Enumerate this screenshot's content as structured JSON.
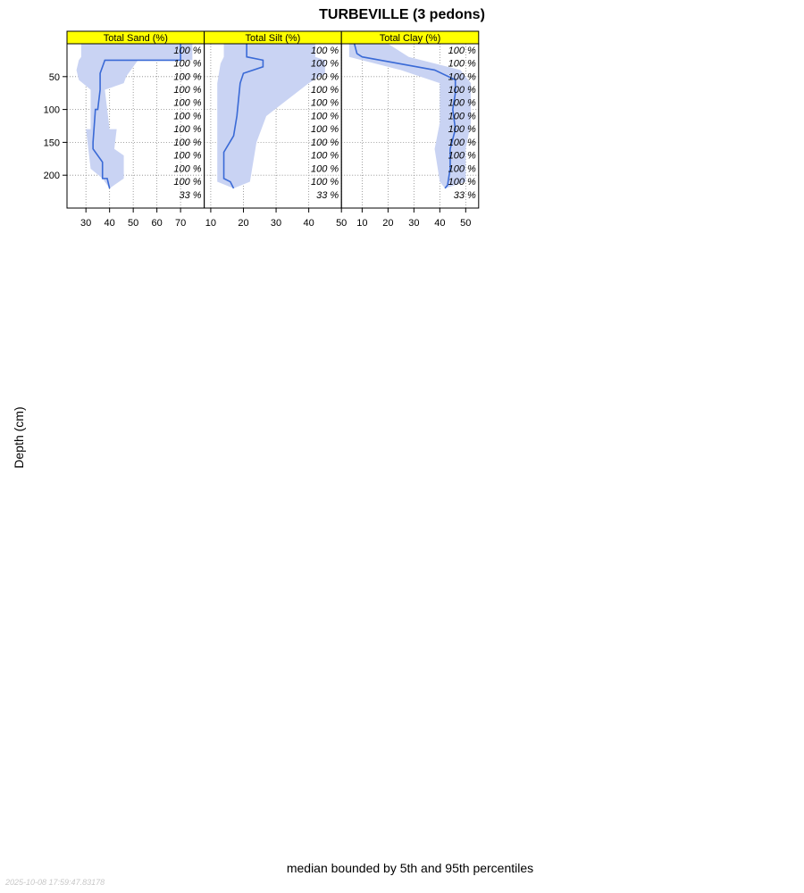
{
  "page": {
    "title": "TURBEVILLE (3 pedons)",
    "ylabel": "Depth (cm)",
    "xlabel": "median bounded by 5th and 95th percentiles",
    "timestamp": "2025-10-08 17:59:47.83178"
  },
  "colors": {
    "strip": "#ffff00",
    "median_line": "#3a6ad6",
    "band": "#c9d3f3",
    "grid": "#888888",
    "frame": "#000000"
  },
  "chart_data": {
    "type": "line",
    "depth_range": [
      250,
      0
    ],
    "depth_ticks": [
      50,
      100,
      150,
      200
    ],
    "depth_tick_labels": [
      "50",
      "100",
      "150",
      "200"
    ],
    "grid": true,
    "band_definition": "5th to 95th percentile",
    "depth_slices": [
      10,
      30,
      50,
      70,
      90,
      110,
      130,
      150,
      170,
      190,
      210,
      230
    ],
    "rows": [
      {
        "panels": [
          {
            "name": "Total Sand (%)",
            "xlim": [
              22,
              80
            ],
            "ticks": [
              30,
              40,
              50,
              60,
              70
            ],
            "tick_labels": [
              "30",
              "40",
              "50",
              "60",
              "70"
            ],
            "median": [
              [
                0,
                70
              ],
              [
                25,
                70
              ],
              [
                25,
                38
              ],
              [
                45,
                36
              ],
              [
                55,
                36
              ],
              [
                70,
                36
              ],
              [
                100,
                35
              ],
              [
                100,
                34
              ],
              [
                150,
                33
              ],
              [
                160,
                33
              ],
              [
                180,
                37
              ],
              [
                205,
                37
              ],
              [
                205,
                39
              ],
              [
                220,
                40
              ]
            ],
            "p5": [
              [
                0,
                28
              ],
              [
                20,
                28
              ],
              [
                25,
                27
              ],
              [
                40,
                26
              ],
              [
                55,
                27
              ],
              [
                70,
                32
              ],
              [
                130,
                32
              ],
              [
                130,
                30
              ],
              [
                190,
                32
              ],
              [
                205,
                37
              ],
              [
                220,
                40
              ]
            ],
            "p95": [
              [
                0,
                75
              ],
              [
                25,
                75
              ],
              [
                25,
                52
              ],
              [
                50,
                47
              ],
              [
                60,
                46
              ],
              [
                70,
                38
              ],
              [
                130,
                40
              ],
              [
                130,
                43
              ],
              [
                160,
                42
              ],
              [
                170,
                46
              ],
              [
                205,
                46
              ],
              [
                220,
                40
              ]
            ],
            "percent": [
              "100 %",
              "100 %",
              "100 %",
              "100 %",
              "100 %",
              "100 %",
              "100 %",
              "100 %",
              "100 %",
              "100 %",
              "100 %",
              "33 %"
            ]
          },
          {
            "name": "Total Silt (%)",
            "xlim": [
              8,
              50
            ],
            "ticks": [
              10,
              20,
              30,
              40,
              50
            ],
            "tick_labels": [
              "10",
              "20",
              "30",
              "40",
              "50"
            ],
            "median": [
              [
                0,
                21
              ],
              [
                20,
                21
              ],
              [
                25,
                26
              ],
              [
                35,
                26
              ],
              [
                45,
                20
              ],
              [
                60,
                19
              ],
              [
                110,
                18
              ],
              [
                140,
                17
              ],
              [
                165,
                14
              ],
              [
                205,
                14
              ],
              [
                210,
                16
              ],
              [
                220,
                17
              ]
            ],
            "p5": [
              [
                0,
                14
              ],
              [
                20,
                14
              ],
              [
                30,
                13
              ],
              [
                60,
                12
              ],
              [
                100,
                12
              ],
              [
                150,
                12
              ],
              [
                210,
                12
              ],
              [
                220,
                17
              ]
            ],
            "p95": [
              [
                0,
                42
              ],
              [
                20,
                42
              ],
              [
                25,
                45
              ],
              [
                45,
                45
              ],
              [
                60,
                40
              ],
              [
                110,
                27
              ],
              [
                150,
                24
              ],
              [
                210,
                22
              ],
              [
                220,
                17
              ]
            ],
            "percent": [
              "100 %",
              "100 %",
              "100 %",
              "100 %",
              "100 %",
              "100 %",
              "100 %",
              "100 %",
              "100 %",
              "100 %",
              "100 %",
              "33 %"
            ]
          },
          {
            "name": "Total Clay (%)",
            "xlim": [
              2,
              55
            ],
            "ticks": [
              10,
              20,
              30,
              40,
              50
            ],
            "tick_labels": [
              "10",
              "20",
              "30",
              "40",
              "50"
            ],
            "median": [
              [
                0,
                7
              ],
              [
                15,
                8
              ],
              [
                20,
                10
              ],
              [
                40,
                38
              ],
              [
                55,
                46
              ],
              [
                75,
                46
              ],
              [
                100,
                45
              ],
              [
                130,
                46
              ],
              [
                160,
                44
              ],
              [
                190,
                44
              ],
              [
                215,
                43
              ],
              [
                220,
                42
              ]
            ],
            "p5": [
              [
                0,
                5
              ],
              [
                20,
                5
              ],
              [
                40,
                25
              ],
              [
                60,
                40
              ],
              [
                120,
                40
              ],
              [
                160,
                38
              ],
              [
                210,
                40
              ],
              [
                220,
                42
              ]
            ],
            "p95": [
              [
                0,
                20
              ],
              [
                20,
                28
              ],
              [
                40,
                48
              ],
              [
                60,
                52
              ],
              [
                120,
                52
              ],
              [
                160,
                50
              ],
              [
                210,
                50
              ],
              [
                220,
                42
              ]
            ],
            "percent": [
              "100 %",
              "100 %",
              "100 %",
              "100 %",
              "100 %",
              "100 %",
              "100 %",
              "100 %",
              "100 %",
              "100 %",
              "100 %",
              "33 %"
            ]
          }
        ]
      }
    ]
  }
}
